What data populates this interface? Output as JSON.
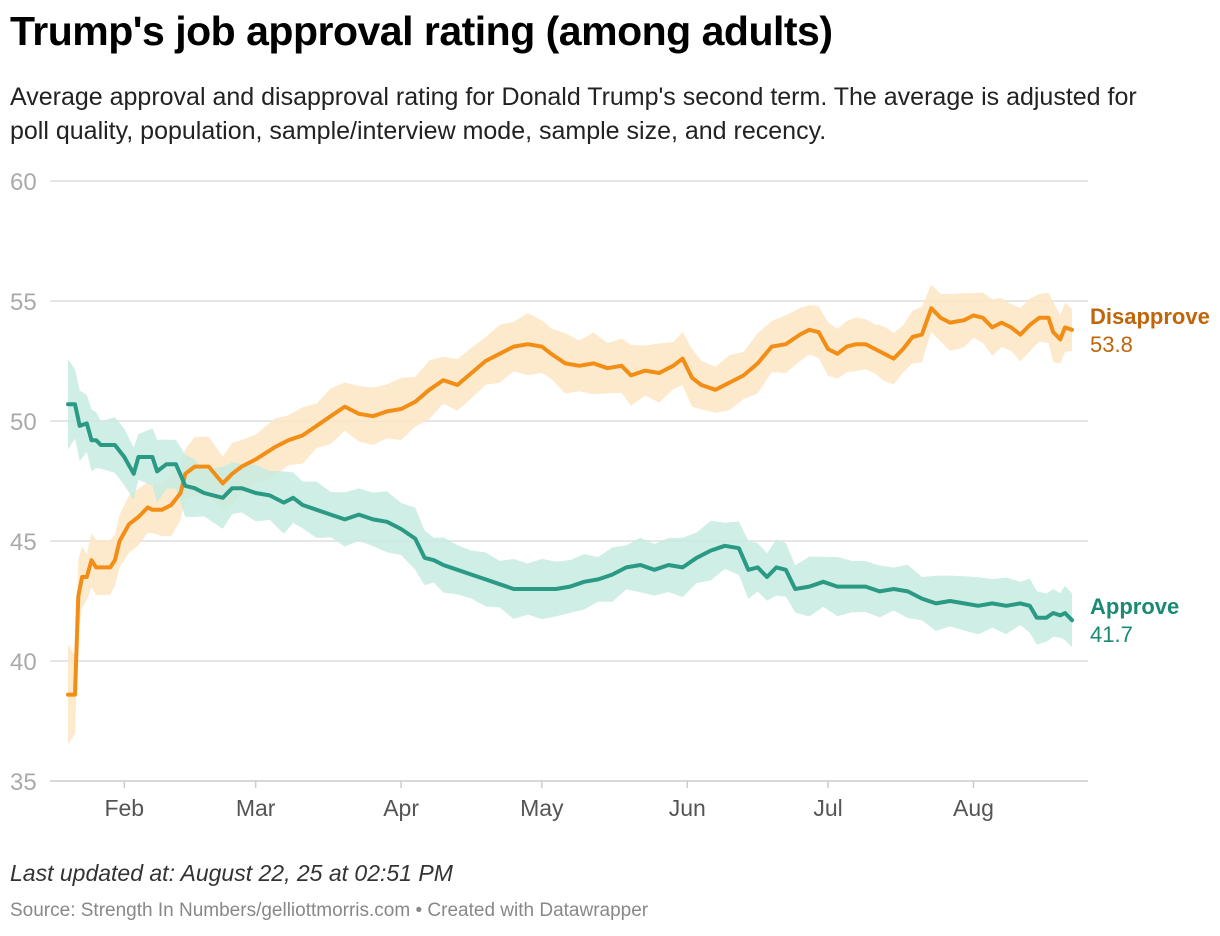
{
  "header": {
    "title": "Trump's job approval rating (among adults)",
    "subtitle": "Average approval and disapproval rating for Donald Trump's second term. The average is adjusted for poll quality, population, sample/interview mode, sample size, and recency."
  },
  "footer": {
    "updated": "Last updated at: August 22, 25 at 02:51 PM",
    "source": "Source: Strength In Numbers/gelliottmorris.com • Created with Datawrapper"
  },
  "colors": {
    "disapprove": "#f28e16",
    "disapprove_label": "#c0650a",
    "disapprove_band": "#fde6c4",
    "approve": "#2a9a84",
    "approve_label": "#1a8a72",
    "approve_band": "#c7ebe1",
    "grid": "#dddddd",
    "tick": "#aaaaaa",
    "month_label": "#555555"
  },
  "chart_data": {
    "type": "line",
    "title": "Trump's job approval rating (among adults)",
    "xlabel": "",
    "ylabel": "",
    "x_unit": "days since Jan 20, 2025",
    "xlim": [
      0,
      214
    ],
    "ylim": [
      35,
      60
    ],
    "yticks": [
      35,
      40,
      45,
      50,
      55,
      60
    ],
    "xticks": [
      {
        "label": "Feb",
        "x": 12
      },
      {
        "label": "Mar",
        "x": 40
      },
      {
        "label": "Apr",
        "x": 71
      },
      {
        "label": "May",
        "x": 101
      },
      {
        "label": "Jun",
        "x": 132
      },
      {
        "label": "Jul",
        "x": 162
      },
      {
        "label": "Aug",
        "x": 193
      }
    ],
    "grid": true,
    "series": [
      {
        "name": "Disapprove",
        "final_value": "53.8",
        "points": [
          [
            0,
            38.6
          ],
          [
            1.5,
            38.6
          ],
          [
            2.2,
            42.7
          ],
          [
            3,
            43.5
          ],
          [
            4,
            43.5
          ],
          [
            5,
            44.2
          ],
          [
            6,
            43.9
          ],
          [
            9,
            43.9
          ],
          [
            10,
            44.2
          ],
          [
            11,
            45
          ],
          [
            13,
            45.7
          ],
          [
            15,
            46
          ],
          [
            17,
            46.4
          ],
          [
            18,
            46.3
          ],
          [
            20,
            46.3
          ],
          [
            22,
            46.5
          ],
          [
            24,
            47
          ],
          [
            25,
            47.8
          ],
          [
            27,
            48.1
          ],
          [
            30,
            48.1
          ],
          [
            33,
            47.4
          ],
          [
            35,
            47.8
          ],
          [
            37,
            48.1
          ],
          [
            40,
            48.4
          ],
          [
            44,
            48.9
          ],
          [
            47,
            49.2
          ],
          [
            50,
            49.4
          ],
          [
            53,
            49.8
          ],
          [
            56,
            50.2
          ],
          [
            59,
            50.6
          ],
          [
            62,
            50.3
          ],
          [
            65,
            50.2
          ],
          [
            68,
            50.4
          ],
          [
            71,
            50.5
          ],
          [
            74,
            50.8
          ],
          [
            77,
            51.3
          ],
          [
            80,
            51.7
          ],
          [
            83,
            51.5
          ],
          [
            86,
            52
          ],
          [
            89,
            52.5
          ],
          [
            92,
            52.8
          ],
          [
            95,
            53.1
          ],
          [
            98,
            53.2
          ],
          [
            101,
            53.1
          ],
          [
            103,
            52.8
          ],
          [
            106,
            52.4
          ],
          [
            109,
            52.3
          ],
          [
            112,
            52.4
          ],
          [
            115,
            52.2
          ],
          [
            118,
            52.3
          ],
          [
            120,
            51.9
          ],
          [
            123,
            52.1
          ],
          [
            126,
            52
          ],
          [
            129,
            52.3
          ],
          [
            131,
            52.6
          ],
          [
            133,
            51.8
          ],
          [
            135,
            51.5
          ],
          [
            138,
            51.3
          ],
          [
            141,
            51.6
          ],
          [
            144,
            51.9
          ],
          [
            147,
            52.4
          ],
          [
            150,
            53.1
          ],
          [
            153,
            53.2
          ],
          [
            156,
            53.6
          ],
          [
            158,
            53.8
          ],
          [
            160,
            53.7
          ],
          [
            162,
            53
          ],
          [
            164,
            52.8
          ],
          [
            166,
            53.1
          ],
          [
            168,
            53.2
          ],
          [
            170,
            53.2
          ],
          [
            172,
            53
          ],
          [
            174,
            52.8
          ],
          [
            176,
            52.6
          ],
          [
            178,
            53
          ],
          [
            180,
            53.5
          ],
          [
            182,
            53.6
          ],
          [
            184,
            54.7
          ],
          [
            186,
            54.3
          ],
          [
            188,
            54.1
          ],
          [
            191,
            54.2
          ],
          [
            193,
            54.4
          ],
          [
            195,
            54.3
          ],
          [
            197,
            53.9
          ],
          [
            199,
            54.1
          ],
          [
            201,
            53.9
          ],
          [
            203,
            53.6
          ],
          [
            205,
            54
          ],
          [
            207,
            54.3
          ],
          [
            209,
            54.3
          ],
          [
            210,
            53.7
          ],
          [
            211.5,
            53.4
          ],
          [
            212.5,
            53.9
          ],
          [
            214,
            53.8
          ]
        ]
      },
      {
        "name": "Approve",
        "final_value": "41.7",
        "points": [
          [
            0,
            50.7
          ],
          [
            1.5,
            50.7
          ],
          [
            2.5,
            49.8
          ],
          [
            4,
            49.9
          ],
          [
            5,
            49.2
          ],
          [
            6,
            49.2
          ],
          [
            7,
            49
          ],
          [
            10,
            49
          ],
          [
            12,
            48.5
          ],
          [
            14,
            47.8
          ],
          [
            15,
            48.5
          ],
          [
            18,
            48.5
          ],
          [
            19,
            47.9
          ],
          [
            21,
            48.2
          ],
          [
            23,
            48.2
          ],
          [
            25,
            47.3
          ],
          [
            27,
            47.2
          ],
          [
            29,
            47
          ],
          [
            31,
            46.9
          ],
          [
            33,
            46.8
          ],
          [
            35,
            47.2
          ],
          [
            37,
            47.2
          ],
          [
            40,
            47
          ],
          [
            43,
            46.9
          ],
          [
            46,
            46.6
          ],
          [
            48,
            46.8
          ],
          [
            50,
            46.5
          ],
          [
            53,
            46.3
          ],
          [
            56,
            46.1
          ],
          [
            59,
            45.9
          ],
          [
            62,
            46.1
          ],
          [
            65,
            45.9
          ],
          [
            68,
            45.8
          ],
          [
            71,
            45.5
          ],
          [
            74,
            45.1
          ],
          [
            76,
            44.3
          ],
          [
            78,
            44.2
          ],
          [
            80,
            44
          ],
          [
            83,
            43.8
          ],
          [
            86,
            43.6
          ],
          [
            89,
            43.4
          ],
          [
            92,
            43.2
          ],
          [
            95,
            43
          ],
          [
            98,
            43
          ],
          [
            101,
            43
          ],
          [
            104,
            43
          ],
          [
            107,
            43.1
          ],
          [
            110,
            43.3
          ],
          [
            113,
            43.4
          ],
          [
            116,
            43.6
          ],
          [
            119,
            43.9
          ],
          [
            122,
            44
          ],
          [
            125,
            43.8
          ],
          [
            128,
            44
          ],
          [
            131,
            43.9
          ],
          [
            134,
            44.3
          ],
          [
            137,
            44.6
          ],
          [
            140,
            44.8
          ],
          [
            143,
            44.7
          ],
          [
            145,
            43.8
          ],
          [
            147,
            43.9
          ],
          [
            149,
            43.5
          ],
          [
            151,
            43.9
          ],
          [
            153,
            43.8
          ],
          [
            155,
            43
          ],
          [
            158,
            43.1
          ],
          [
            161,
            43.3
          ],
          [
            164,
            43.1
          ],
          [
            167,
            43.1
          ],
          [
            170,
            43.1
          ],
          [
            173,
            42.9
          ],
          [
            176,
            43
          ],
          [
            179,
            42.9
          ],
          [
            182,
            42.6
          ],
          [
            185,
            42.4
          ],
          [
            188,
            42.5
          ],
          [
            191,
            42.4
          ],
          [
            194,
            42.3
          ],
          [
            197,
            42.4
          ],
          [
            200,
            42.3
          ],
          [
            203,
            42.4
          ],
          [
            205,
            42.3
          ],
          [
            206.5,
            41.8
          ],
          [
            208.5,
            41.8
          ],
          [
            210,
            42
          ],
          [
            211.5,
            41.9
          ],
          [
            212.5,
            42
          ],
          [
            214,
            41.7
          ]
        ]
      }
    ],
    "bands": [
      {
        "series": "Disapprove",
        "note": "uncertainty interval"
      },
      {
        "series": "Approve",
        "note": "uncertainty interval"
      }
    ]
  }
}
